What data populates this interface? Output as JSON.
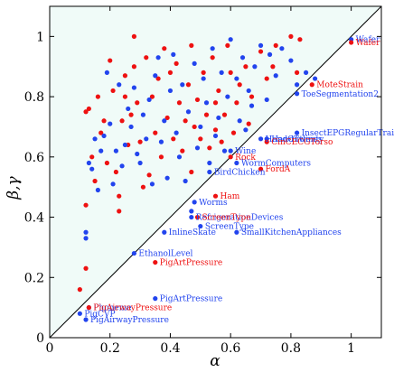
{
  "chart_data": {
    "type": "scatter",
    "title": "",
    "xlabel": "α",
    "ylabel": "β,γ",
    "xlim": [
      0,
      1.1
    ],
    "ylim": [
      0,
      1.1
    ],
    "xticks": [
      0,
      0.2,
      0.4,
      0.6,
      0.8,
      1
    ],
    "yticks": [
      0,
      0.2,
      0.4,
      0.6,
      0.8,
      1
    ],
    "xtick_labels": [
      "0",
      "0.2",
      "0.4",
      "0.6",
      "0.8",
      "1"
    ],
    "ytick_labels": [
      "0",
      "0.2",
      "0.4",
      "0.6",
      "0.8",
      "1"
    ],
    "grid": false,
    "diagonal_line": true,
    "upper_region_color": "#f0fbf8",
    "colors": {
      "blue": "#2244ee",
      "red": "#ee1111"
    },
    "labeled_points": [
      {
        "label": "Wafer",
        "x": 1.0,
        "y": 0.99,
        "color": "blue"
      },
      {
        "label": "Wafer",
        "x": 1.0,
        "y": 0.98,
        "color": "red"
      },
      {
        "label": "MoteStrain",
        "x": 0.87,
        "y": 0.84,
        "color": "red"
      },
      {
        "label": "ToeSegmentation2",
        "x": 0.82,
        "y": 0.81,
        "color": "blue"
      },
      {
        "label": "InsectEPGRegularTrain",
        "x": 0.82,
        "y": 0.68,
        "color": "blue"
      },
      {
        "label": "HandOutlines",
        "x": 0.7,
        "y": 0.66,
        "color": "blue"
      },
      {
        "label": "HandTwenty",
        "x": 0.72,
        "y": 0.66,
        "color": "blue"
      },
      {
        "label": "CinCECGTorso",
        "x": 0.72,
        "y": 0.65,
        "color": "red"
      },
      {
        "label": "Wine",
        "x": 0.6,
        "y": 0.62,
        "color": "blue"
      },
      {
        "label": "Rock",
        "x": 0.6,
        "y": 0.6,
        "color": "red"
      },
      {
        "label": "WormComputers",
        "x": 0.62,
        "y": 0.58,
        "color": "blue"
      },
      {
        "label": "FordA",
        "x": 0.7,
        "y": 0.56,
        "color": "red"
      },
      {
        "label": "BirdChicken",
        "x": 0.53,
        "y": 0.55,
        "color": "blue"
      },
      {
        "label": "Ham",
        "x": 0.55,
        "y": 0.47,
        "color": "red"
      },
      {
        "label": "Worms",
        "x": 0.48,
        "y": 0.45,
        "color": "blue"
      },
      {
        "label": "RefrigerationDevices",
        "x": 0.47,
        "y": 0.4,
        "color": "blue"
      },
      {
        "label": "ScreenType",
        "x": 0.49,
        "y": 0.4,
        "color": "red"
      },
      {
        "label": "ScreenType",
        "x": 0.5,
        "y": 0.37,
        "color": "blue"
      },
      {
        "label": "InlineSkate",
        "x": 0.38,
        "y": 0.35,
        "color": "blue"
      },
      {
        "label": "SmallKitchenAppliances",
        "x": 0.62,
        "y": 0.35,
        "color": "blue"
      },
      {
        "label": "EthanolLevel",
        "x": 0.28,
        "y": 0.28,
        "color": "blue"
      },
      {
        "label": "PigArtPressure",
        "x": 0.35,
        "y": 0.25,
        "color": "red"
      },
      {
        "label": "PigArtPressure",
        "x": 0.35,
        "y": 0.13,
        "color": "blue"
      },
      {
        "label": "Phoneme",
        "x": 0.13,
        "y": 0.1,
        "color": "blue"
      },
      {
        "label": "PigAirwayPressure",
        "x": 0.13,
        "y": 0.1,
        "color": "red"
      },
      {
        "label": "PigCVP",
        "x": 0.1,
        "y": 0.08,
        "color": "blue"
      },
      {
        "label": "PigAirwayPressure",
        "x": 0.12,
        "y": 0.06,
        "color": "blue"
      }
    ],
    "series": [
      {
        "color": "red",
        "points": [
          [
            0.1,
            0.16
          ],
          [
            0.12,
            0.44
          ],
          [
            0.12,
            0.23
          ],
          [
            0.12,
            0.75
          ],
          [
            0.13,
            0.76
          ],
          [
            0.14,
            0.6
          ],
          [
            0.15,
            0.52
          ],
          [
            0.16,
            0.8
          ],
          [
            0.17,
            0.68
          ],
          [
            0.18,
            0.72
          ],
          [
            0.19,
            0.58
          ],
          [
            0.2,
            0.92
          ],
          [
            0.21,
            0.82
          ],
          [
            0.22,
            0.55
          ],
          [
            0.23,
            0.47
          ],
          [
            0.23,
            0.42
          ],
          [
            0.24,
            0.72
          ],
          [
            0.25,
            0.87
          ],
          [
            0.25,
            0.8
          ],
          [
            0.26,
            0.64
          ],
          [
            0.27,
            0.74
          ],
          [
            0.28,
            0.9
          ],
          [
            0.28,
            1.0
          ],
          [
            0.29,
            0.78
          ],
          [
            0.3,
            0.65
          ],
          [
            0.31,
            0.5
          ],
          [
            0.32,
            0.93
          ],
          [
            0.33,
            0.54
          ],
          [
            0.34,
            0.8
          ],
          [
            0.35,
            0.68
          ],
          [
            0.36,
            0.86
          ],
          [
            0.37,
            0.6
          ],
          [
            0.38,
            0.96
          ],
          [
            0.39,
            0.73
          ],
          [
            0.4,
            0.88
          ],
          [
            0.41,
            0.66
          ],
          [
            0.42,
            0.91
          ],
          [
            0.43,
            0.78
          ],
          [
            0.44,
            0.62
          ],
          [
            0.45,
            0.72
          ],
          [
            0.46,
            0.84
          ],
          [
            0.47,
            0.55
          ],
          [
            0.47,
            0.97
          ],
          [
            0.48,
            0.7
          ],
          [
            0.49,
            0.79
          ],
          [
            0.5,
            0.66
          ],
          [
            0.51,
            0.88
          ],
          [
            0.52,
            0.74
          ],
          [
            0.53,
            0.63
          ],
          [
            0.54,
            0.93
          ],
          [
            0.55,
            0.69
          ],
          [
            0.55,
            0.78
          ],
          [
            0.56,
            0.82
          ],
          [
            0.57,
            0.65
          ],
          [
            0.58,
            0.74
          ],
          [
            0.59,
            0.97
          ],
          [
            0.6,
            0.88
          ],
          [
            0.61,
            0.68
          ],
          [
            0.62,
            0.78
          ],
          [
            0.63,
            0.84
          ],
          [
            0.65,
            0.9
          ],
          [
            0.66,
            0.71
          ],
          [
            0.67,
            0.8
          ],
          [
            0.7,
            0.95
          ],
          [
            0.72,
            0.86
          ],
          [
            0.74,
            0.9
          ],
          [
            0.75,
            0.97
          ],
          [
            0.8,
            1.0
          ],
          [
            0.82,
            0.88
          ],
          [
            0.83,
            0.99
          ]
        ]
      },
      {
        "color": "blue",
        "points": [
          [
            0.12,
            0.35
          ],
          [
            0.12,
            0.33
          ],
          [
            0.13,
            0.58
          ],
          [
            0.14,
            0.56
          ],
          [
            0.15,
            0.66
          ],
          [
            0.16,
            0.49
          ],
          [
            0.17,
            0.62
          ],
          [
            0.18,
            0.67
          ],
          [
            0.19,
            0.88
          ],
          [
            0.2,
            0.71
          ],
          [
            0.21,
            0.51
          ],
          [
            0.22,
            0.62
          ],
          [
            0.23,
            0.84
          ],
          [
            0.24,
            0.57
          ],
          [
            0.25,
            0.64
          ],
          [
            0.26,
            0.76
          ],
          [
            0.27,
            0.7
          ],
          [
            0.28,
            0.83
          ],
          [
            0.29,
            0.61
          ],
          [
            0.3,
            0.58
          ],
          [
            0.31,
            0.74
          ],
          [
            0.32,
            0.66
          ],
          [
            0.33,
            0.79
          ],
          [
            0.34,
            0.51
          ],
          [
            0.35,
            0.87
          ],
          [
            0.36,
            0.93
          ],
          [
            0.37,
            0.65
          ],
          [
            0.38,
            0.72
          ],
          [
            0.39,
            0.53
          ],
          [
            0.4,
            0.82
          ],
          [
            0.41,
            0.94
          ],
          [
            0.42,
            0.68
          ],
          [
            0.43,
            0.6
          ],
          [
            0.44,
            0.84
          ],
          [
            0.45,
            0.52
          ],
          [
            0.46,
            0.75
          ],
          [
            0.47,
            0.42
          ],
          [
            0.48,
            0.91
          ],
          [
            0.49,
            0.63
          ],
          [
            0.5,
            0.7
          ],
          [
            0.51,
            0.86
          ],
          [
            0.52,
            0.78
          ],
          [
            0.53,
            0.58
          ],
          [
            0.54,
            0.96
          ],
          [
            0.55,
            0.67
          ],
          [
            0.56,
            0.73
          ],
          [
            0.57,
            0.88
          ],
          [
            0.58,
            0.62
          ],
          [
            0.59,
            0.8
          ],
          [
            0.6,
            0.99
          ],
          [
            0.62,
            0.86
          ],
          [
            0.63,
            0.72
          ],
          [
            0.64,
            0.93
          ],
          [
            0.65,
            0.69
          ],
          [
            0.66,
            0.82
          ],
          [
            0.67,
            0.77
          ],
          [
            0.68,
            0.9
          ],
          [
            0.7,
            0.97
          ],
          [
            0.72,
            0.79
          ],
          [
            0.73,
            0.94
          ],
          [
            0.75,
            0.87
          ],
          [
            0.77,
            0.96
          ],
          [
            0.8,
            0.92
          ],
          [
            0.82,
            0.84
          ],
          [
            0.85,
            0.88
          ],
          [
            0.88,
            0.86
          ]
        ]
      }
    ]
  }
}
